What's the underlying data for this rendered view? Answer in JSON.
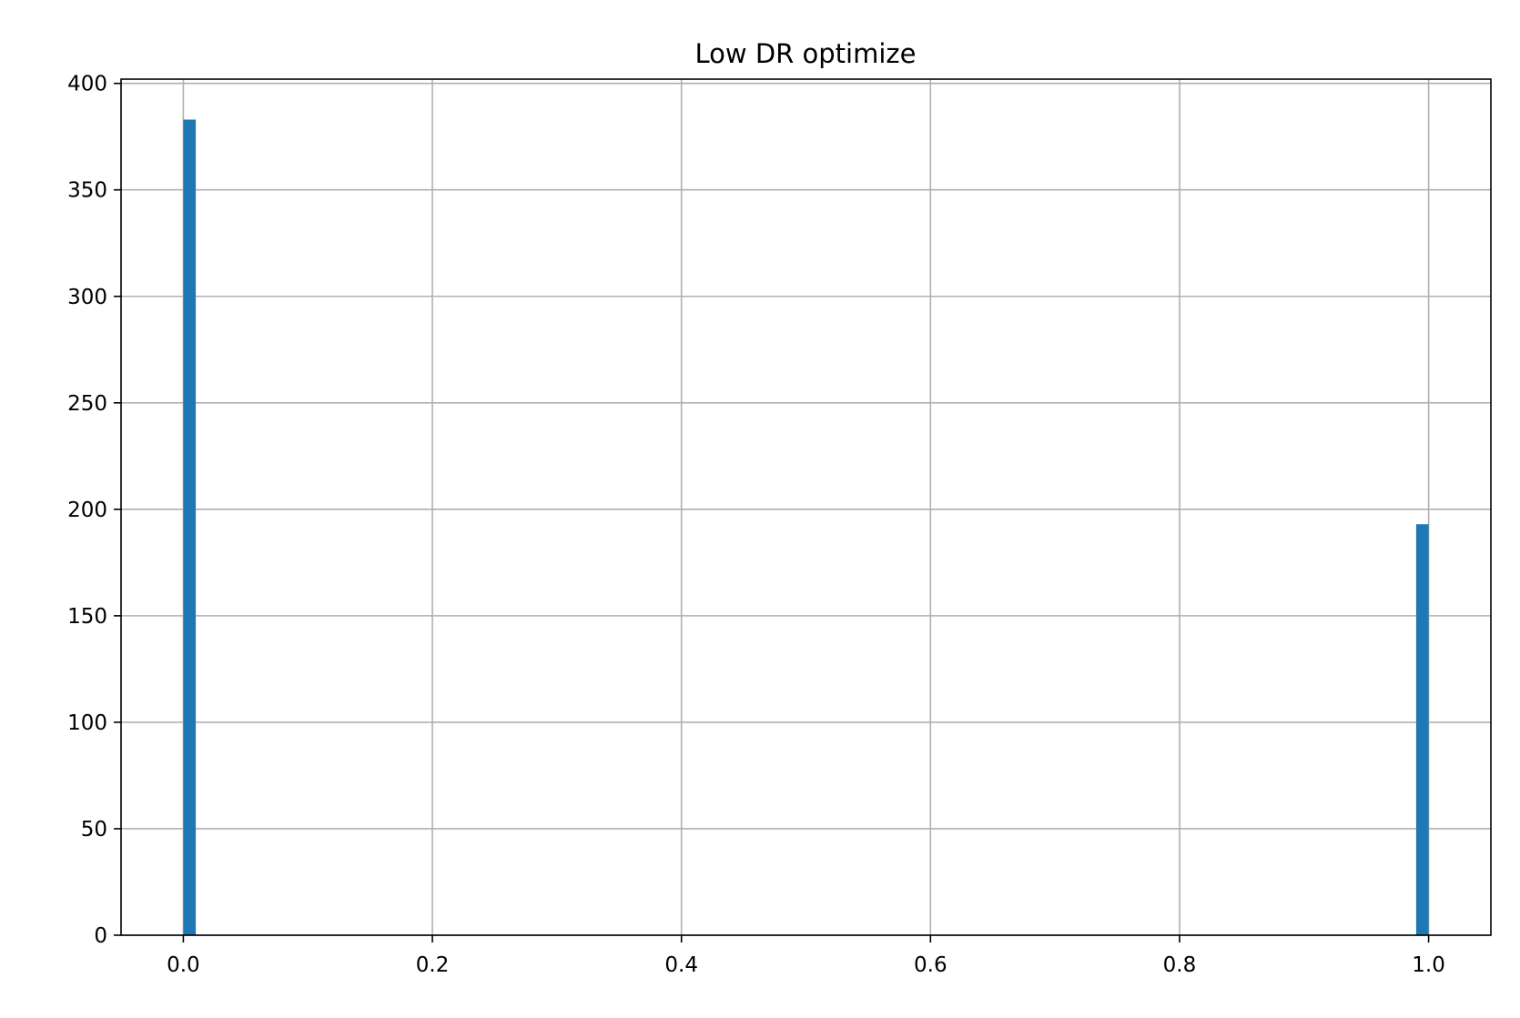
{
  "chart_data": {
    "type": "bar",
    "title": "Low DR optimize",
    "xlabel": "",
    "ylabel": "",
    "xlim": [
      -0.05,
      1.05
    ],
    "ylim": [
      0,
      402
    ],
    "xticks": [
      0.0,
      0.2,
      0.4,
      0.6,
      0.8,
      1.0
    ],
    "xtick_labels": [
      "0.0",
      "0.2",
      "0.4",
      "0.6",
      "0.8",
      "1.0"
    ],
    "yticks": [
      0,
      50,
      100,
      150,
      200,
      250,
      300,
      350,
      400
    ],
    "ytick_labels": [
      "0",
      "50",
      "100",
      "150",
      "200",
      "250",
      "300",
      "350",
      "400"
    ],
    "grid": true,
    "legend": "none",
    "bar_color": "#1f77b4",
    "bins": [
      {
        "start": 0.0,
        "end": 0.01,
        "value": 383
      },
      {
        "start": 0.99,
        "end": 1.0,
        "value": 193
      }
    ]
  }
}
